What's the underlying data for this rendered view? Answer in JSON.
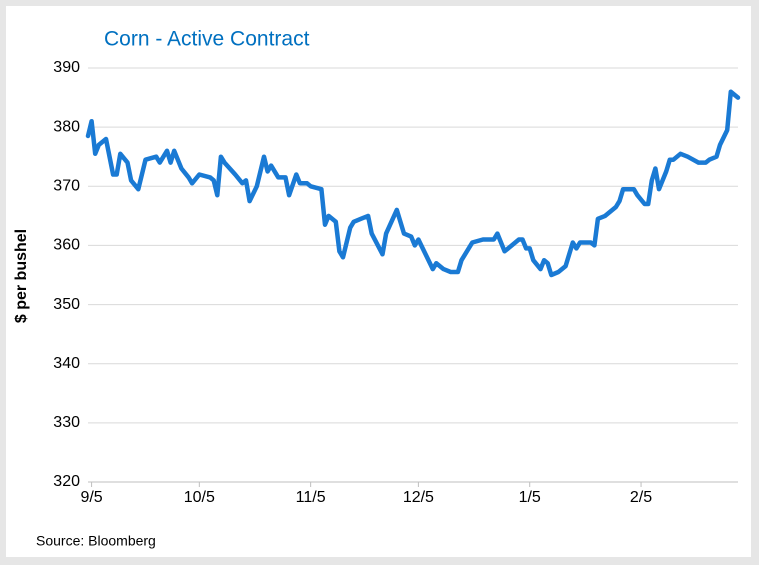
{
  "chart_data": {
    "type": "line",
    "title": "Corn - Active Contract",
    "y_label": "$ per bushel",
    "source": "Source: Bloomberg",
    "ylim": [
      320,
      390
    ],
    "yticks": [
      320,
      330,
      340,
      350,
      360,
      370,
      380,
      390
    ],
    "xlim": [
      "9/4",
      "3/4"
    ],
    "xticks": [
      "9/5",
      "10/5",
      "11/5",
      "12/5",
      "1/5",
      "2/5"
    ],
    "grid": true,
    "x": [
      "9/4",
      "9/5",
      "9/6",
      "9/7",
      "9/9",
      "9/11",
      "9/12",
      "9/13",
      "9/15",
      "9/16",
      "9/18",
      "9/19",
      "9/20",
      "9/23",
      "9/24",
      "9/26",
      "9/27",
      "9/28",
      "9/30",
      "10/2",
      "10/3",
      "10/5",
      "10/8",
      "10/9",
      "10/10",
      "10/11",
      "10/12",
      "10/15",
      "10/17",
      "10/18",
      "10/19",
      "10/21",
      "10/23",
      "10/24",
      "10/25",
      "10/27",
      "10/29",
      "10/30",
      "11/1",
      "11/2",
      "11/4",
      "11/5",
      "11/8",
      "11/9",
      "11/10",
      "11/12",
      "11/13",
      "11/14",
      "11/16",
      "11/17",
      "11/19",
      "11/21",
      "11/22",
      "11/25",
      "11/26",
      "11/29",
      "12/1",
      "12/3",
      "12/4",
      "12/5",
      "12/9",
      "12/10",
      "12/12",
      "12/14",
      "12/16",
      "12/17",
      "12/20",
      "12/23",
      "12/26",
      "12/27",
      "12/29",
      "12/30",
      "1/2",
      "1/3",
      "1/4",
      "1/5",
      "1/6",
      "1/8",
      "1/9",
      "1/10",
      "1/11",
      "1/13",
      "1/15",
      "1/17",
      "1/18",
      "1/19",
      "1/22",
      "1/23",
      "1/24",
      "1/26",
      "1/29",
      "1/30",
      "1/31",
      "2/1",
      "2/3",
      "2/4",
      "2/6",
      "2/7",
      "2/8",
      "2/9",
      "2/10",
      "2/12",
      "2/13",
      "2/14",
      "2/16",
      "2/18",
      "2/21",
      "2/23",
      "2/24",
      "2/26",
      "2/27",
      "3/1",
      "3/2",
      "3/4"
    ],
    "series": [
      {
        "name": "Corn",
        "color": "#1a7ad4",
        "values": [
          378.5,
          381,
          375.5,
          377,
          378,
          372,
          372,
          375.5,
          374,
          371,
          369.5,
          372,
          374.5,
          375,
          374,
          376,
          374,
          376,
          373,
          371.5,
          370.5,
          372,
          371.5,
          371,
          368.5,
          375,
          374,
          372,
          370.5,
          371,
          367.5,
          370,
          375,
          372.5,
          373.5,
          371.5,
          371.5,
          368.5,
          372,
          370.5,
          370.5,
          370,
          369.5,
          363.5,
          365,
          364,
          359,
          358,
          363,
          364,
          364.5,
          365,
          362,
          358.5,
          362,
          366,
          362,
          361.5,
          360,
          361,
          356,
          357,
          356,
          355.5,
          355.5,
          357.5,
          360.5,
          361,
          361,
          362,
          359,
          359.5,
          361,
          361,
          359.5,
          359.5,
          357.5,
          356,
          357.5,
          357,
          355,
          355.5,
          356.5,
          360.5,
          359.5,
          360.5,
          360.5,
          360,
          364.5,
          365,
          366.5,
          367.5,
          369.5,
          369.5,
          369.5,
          368.5,
          367,
          367,
          371,
          373,
          369.5,
          372.5,
          374.5,
          374.5,
          375.5,
          375,
          374,
          374,
          374.5,
          375,
          377,
          379.5,
          386,
          385
        ]
      }
    ]
  }
}
